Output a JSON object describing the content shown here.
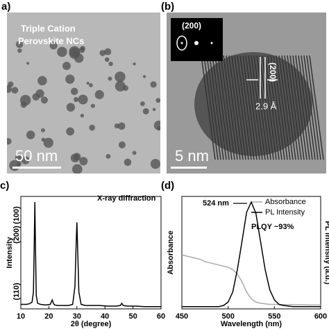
{
  "panels": {
    "a": {
      "label": "a)",
      "caption": [
        "Triple Cation",
        "Perovskite NCs"
      ],
      "scale_bar": "50 nm"
    },
    "b": {
      "label": "(b)",
      "fft_label": "(200)",
      "plane_label": "(200)",
      "spacing": "2.9 Å",
      "scale_bar": "5 nm"
    }
  },
  "chart_data": [
    {
      "type": "line",
      "panel_label": "c)",
      "x_label": "2θ (degree)",
      "y_label": "Intensity",
      "annotations": [
        "X-ray diffraction",
        "(100)",
        "(110)",
        "(200)"
      ],
      "xlim": [
        10,
        60
      ],
      "xticks": [
        10,
        20,
        30,
        40,
        50,
        60
      ],
      "ylim": [
        0,
        1
      ],
      "series": [
        {
          "color": "#000000",
          "x": [
            10,
            12,
            13,
            14,
            14.5,
            14.8,
            15,
            15.2,
            15.5,
            16,
            17,
            19,
            20.5,
            21.2,
            21.6,
            22,
            23,
            25,
            27,
            28.5,
            29.3,
            29.7,
            30,
            30.3,
            30.7,
            31.5,
            33,
            35,
            38,
            41,
            44,
            45.5,
            46,
            46.5,
            48,
            51,
            54,
            57,
            60
          ],
          "values": [
            0.04,
            0.04,
            0.045,
            0.06,
            0.15,
            0.6,
            0.95,
            0.6,
            0.12,
            0.05,
            0.04,
            0.035,
            0.04,
            0.08,
            0.05,
            0.035,
            0.03,
            0.03,
            0.03,
            0.04,
            0.2,
            0.55,
            0.77,
            0.5,
            0.15,
            0.04,
            0.03,
            0.03,
            0.03,
            0.025,
            0.025,
            0.03,
            0.05,
            0.03,
            0.025,
            0.025,
            0.02,
            0.02,
            0.02
          ]
        }
      ]
    },
    {
      "type": "line",
      "panel_label": "(d)",
      "x_label": "Wavelength (nm)",
      "y_label": "Absorbance",
      "y2_label": "PL Intensity (a.u.)",
      "annotations": [
        "524 nm",
        "PLQY ~93%"
      ],
      "legend": "top-right",
      "xlim": [
        450,
        600
      ],
      "xticks": [
        450,
        500,
        550,
        600
      ],
      "ylim": [
        0,
        1
      ],
      "series": [
        {
          "name": "Absorbance",
          "color": "#aaaaaa",
          "x": [
            450,
            455,
            460,
            465,
            470,
            475,
            480,
            485,
            490,
            495,
            500,
            505,
            510,
            515,
            520,
            525,
            530,
            535,
            540,
            545,
            550,
            560,
            570,
            580,
            590,
            600
          ],
          "values": [
            0.48,
            0.47,
            0.46,
            0.45,
            0.44,
            0.42,
            0.41,
            0.4,
            0.39,
            0.38,
            0.37,
            0.35,
            0.31,
            0.24,
            0.15,
            0.09,
            0.06,
            0.05,
            0.045,
            0.04,
            0.04,
            0.038,
            0.037,
            0.036,
            0.035,
            0.035
          ]
        },
        {
          "name": "PL Intensity",
          "color": "#000000",
          "x": [
            450,
            460,
            470,
            480,
            490,
            495,
            500,
            505,
            510,
            515,
            520,
            525,
            530,
            535,
            540,
            545,
            550,
            555,
            560,
            570,
            580,
            590,
            600
          ],
          "values": [
            0.02,
            0.02,
            0.02,
            0.02,
            0.02,
            0.03,
            0.06,
            0.15,
            0.35,
            0.6,
            0.86,
            0.95,
            0.85,
            0.6,
            0.35,
            0.17,
            0.08,
            0.04,
            0.03,
            0.02,
            0.02,
            0.02,
            0.02
          ]
        }
      ]
    }
  ]
}
